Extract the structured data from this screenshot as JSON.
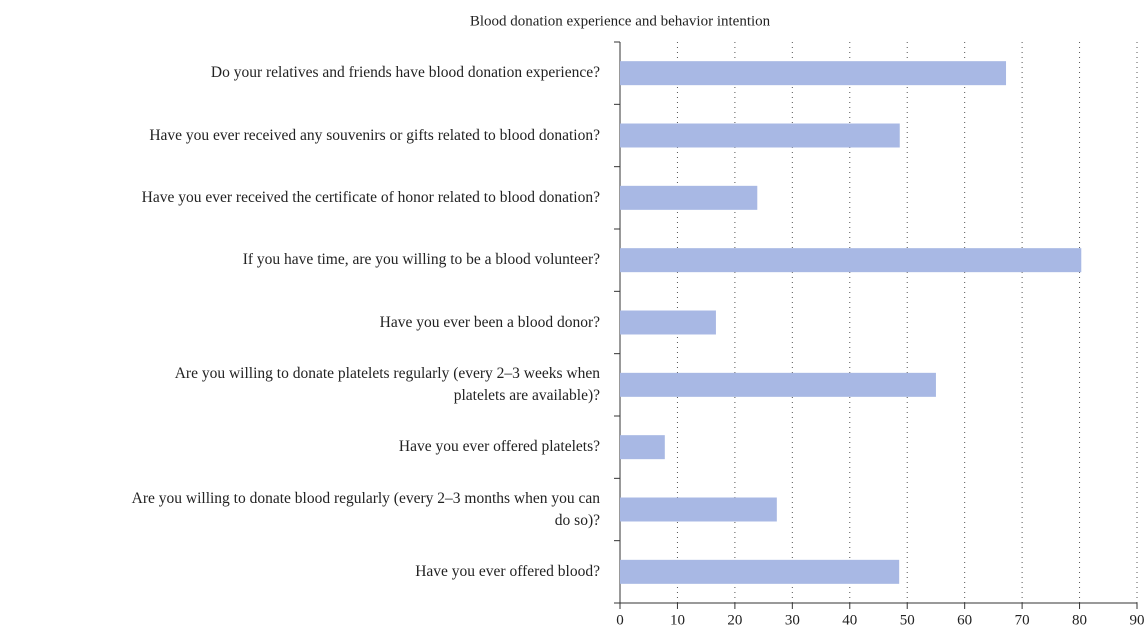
{
  "chart_data": {
    "type": "barh",
    "title": "Blood donation experience and behavior intention",
    "categories": [
      "Do your relatives and friends have blood donation experience?",
      "Have you ever received any souvenirs or gifts related to blood donation?",
      "Have you ever received the certificate of honor related to blood donation?",
      "If you have time, are you willing to be a blood volunteer?",
      "Have you ever been a blood donor?",
      "Are you willing to donate platelets regularly (every 2–3 weeks when platelets are available)?",
      "Have you ever offered platelets?",
      "Are you willing to donate blood regularly (every 2–3 months when you can do so)?",
      "Have you ever offered blood?"
    ],
    "values": [
      67.2,
      48.7,
      23.9,
      80.3,
      16.7,
      55,
      7.8,
      27.3,
      48.6
    ],
    "color": "#a8b8e4",
    "xlim": [
      0,
      90
    ],
    "xticks": [
      0,
      10,
      20,
      30,
      40,
      50,
      60,
      70,
      80,
      90
    ],
    "grid": true
  }
}
